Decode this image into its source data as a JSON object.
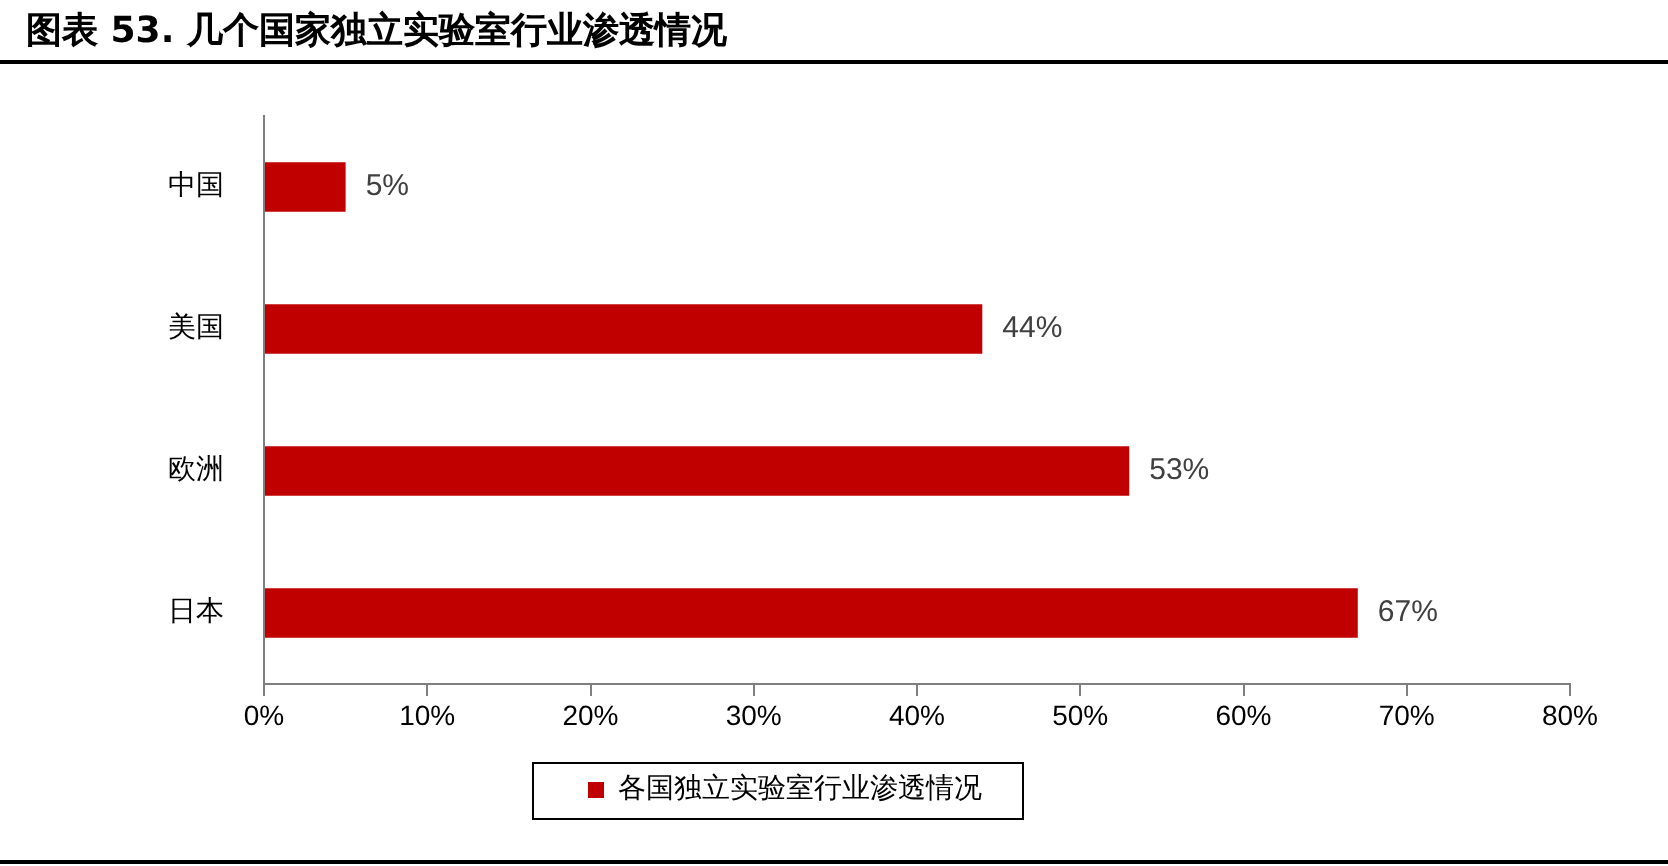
{
  "chart_data": {
    "type": "bar",
    "title": "图表 53. 几个国家独立实验室行业渗透情况",
    "orientation": "horizontal",
    "categories": [
      "中国",
      "美国",
      "欧洲",
      "日本"
    ],
    "series": [
      {
        "name": "各国独立实验室行业渗透情况",
        "color": "#c00000",
        "values": [
          5,
          44,
          53,
          67
        ],
        "value_labels": [
          "5%",
          "44%",
          "53%",
          "67%"
        ]
      }
    ],
    "xlim": [
      0,
      80
    ],
    "xticks": [
      {
        "value": 0,
        "label": "0%"
      },
      {
        "value": 10,
        "label": "10%"
      },
      {
        "value": 20,
        "label": "20%"
      },
      {
        "value": 30,
        "label": "30%"
      },
      {
        "value": 40,
        "label": "40%"
      },
      {
        "value": 50,
        "label": "50%"
      },
      {
        "value": 60,
        "label": "60%"
      },
      {
        "value": 70,
        "label": "70%"
      },
      {
        "value": 80,
        "label": "80%"
      }
    ],
    "legend": "bottom",
    "grid": false
  }
}
